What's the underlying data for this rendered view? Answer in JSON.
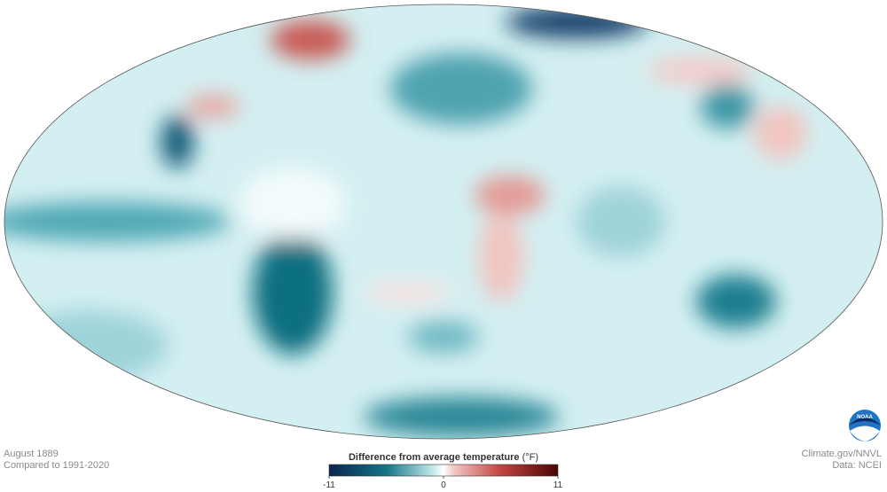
{
  "map": {
    "date": "August 1889",
    "baseline": "Compared to 1991-2020"
  },
  "legend": {
    "title": "Difference from average temperature",
    "unit": "(°F)",
    "range": [
      -11,
      11
    ],
    "ticks": [
      -11,
      0,
      11
    ]
  },
  "credits": {
    "source": "Climate.gov/NNVL",
    "data": "Data: NCEI",
    "logo": "NOAA"
  }
}
